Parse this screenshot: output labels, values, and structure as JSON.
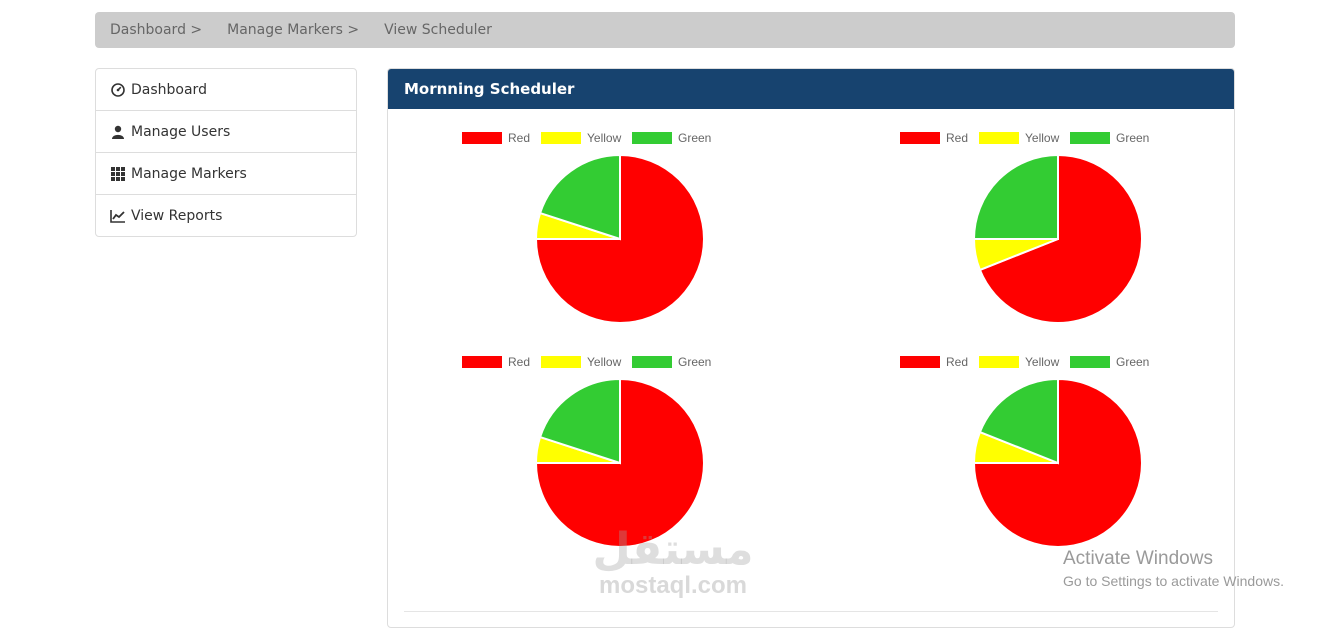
{
  "breadcrumb": {
    "items": [
      "Dashboard >",
      "Manage Markers >",
      "View Scheduler"
    ]
  },
  "sidebar": {
    "items": [
      {
        "label": "Dashboard",
        "icon": "dashboard-icon"
      },
      {
        "label": "Manage Users",
        "icon": "user-icon"
      },
      {
        "label": "Manage Markers",
        "icon": "grid-icon"
      },
      {
        "label": "View Reports",
        "icon": "line-chart-icon"
      }
    ]
  },
  "panel": {
    "title": "Mornning Scheduler"
  },
  "colors": {
    "panel_heading": "#17436f",
    "breadcrumb_bg": "#cccccc",
    "red": "#ff0000",
    "yellow": "#ffff00",
    "green": "#33cc33"
  },
  "chart_data": [
    {
      "type": "pie",
      "title": "",
      "labels": [
        "Red",
        "Yellow",
        "Green"
      ],
      "values": [
        75,
        5,
        20
      ],
      "colors": [
        "#ff0000",
        "#ffff00",
        "#33cc33"
      ],
      "legend": "top"
    },
    {
      "type": "pie",
      "title": "",
      "labels": [
        "Red",
        "Yellow",
        "Green"
      ],
      "values": [
        69,
        6,
        25
      ],
      "colors": [
        "#ff0000",
        "#ffff00",
        "#33cc33"
      ],
      "legend": "top"
    },
    {
      "type": "pie",
      "title": "",
      "labels": [
        "Red",
        "Yellow",
        "Green"
      ],
      "values": [
        75,
        5,
        20
      ],
      "colors": [
        "#ff0000",
        "#ffff00",
        "#33cc33"
      ],
      "legend": "top"
    },
    {
      "type": "pie",
      "title": "",
      "labels": [
        "Red",
        "Yellow",
        "Green"
      ],
      "values": [
        75,
        6,
        19
      ],
      "colors": [
        "#ff0000",
        "#ffff00",
        "#33cc33"
      ],
      "legend": "top"
    }
  ],
  "watermark": {
    "arabic": "مستقل",
    "latin": "mostaql.com"
  },
  "os_overlay": {
    "title": "Activate Windows",
    "subtitle": "Go to Settings to activate Windows."
  }
}
